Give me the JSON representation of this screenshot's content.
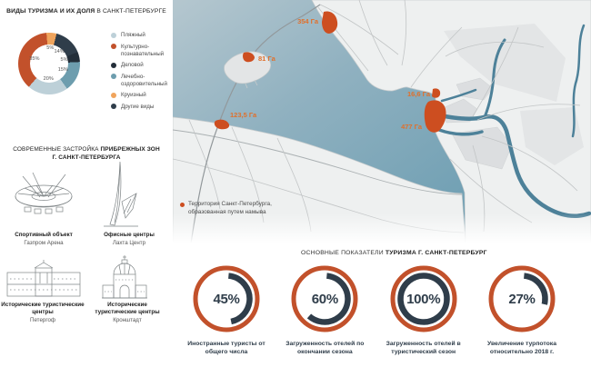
{
  "colors": {
    "accent_orange": "#c2512b",
    "cruise_orange": "#f0a45c",
    "navy": "#2f3d4a",
    "business_dark": "#232e39",
    "teal": "#6d9dae",
    "beach_blue": "#bdd0d8",
    "map_water_light": "#b5c7cf",
    "map_water": "#7fa6b7",
    "river": "#4d8199",
    "land": "#eef0f0",
    "reclaimed_area": "#cd4e20",
    "map_label": "#e0702c",
    "gauge_ring": "#c2512b",
    "gauge_arc": "#2f3d4a"
  },
  "chart_data": [
    {
      "type": "pie",
      "subtype": "donut",
      "title_bold": "ВИДЫ ТУРИЗМА И ИХ ДОЛЯ",
      "title_rest": "В САНКТ-ПЕТЕРБУРГЕ",
      "categories": [
        "Пляжный",
        "Культурно-познавательный",
        "Деловой",
        "Лечебно-оздоровительный",
        "Круизный",
        "Другие виды"
      ],
      "values": [
        20,
        35,
        5,
        15,
        5,
        14
      ],
      "unit": "%",
      "legend_position": "right",
      "legend": [
        {
          "label": "Пляжный",
          "color": "#bdd0d8"
        },
        {
          "label": "Культурно-познавательный",
          "color": "#c2512b"
        },
        {
          "label": "Деловой",
          "color": "#232e39"
        },
        {
          "label": "Лечебно-оздоровительный",
          "color": "#6d9dae"
        },
        {
          "label": "Круизный",
          "color": "#f0a45c"
        },
        {
          "label": "Другие виды",
          "color": "#2f3d4a"
        }
      ],
      "segments_clockwise": [
        {
          "label": "Круизный",
          "value": 5,
          "color": "#f0a45c"
        },
        {
          "label": "Другие виды",
          "value": 14,
          "color": "#2f3d4a"
        },
        {
          "label": "Деловой",
          "value": 5,
          "color": "#232e39"
        },
        {
          "label": "Лечебно-оздоровительный",
          "value": 15,
          "color": "#6d9dae"
        },
        {
          "label": "Пляжный",
          "value": 20,
          "color": "#bdd0d8"
        },
        {
          "label": "Культурно-познавательный",
          "value": 35,
          "color": "#c2512b"
        }
      ]
    },
    {
      "type": "gauge",
      "heading_regular": "ОСНОВНЫЕ ПОКАЗАТЕЛИ",
      "heading_bold": "ТУРИЗМА Г. САНКТ-ПЕТЕРБУРГ",
      "items": [
        {
          "label": "Иностранные туристы от общего числа",
          "value_percent": 45,
          "display": "45%"
        },
        {
          "label": "Загруженность отелей по окончании сезона",
          "value_percent": 60,
          "display": "60%"
        },
        {
          "label": "Загруженность отелей в туристический сезон",
          "value_percent": 100,
          "display": "100%"
        },
        {
          "label": "Увеличение турпотока относительно 2018 г.",
          "value_percent": 27,
          "display": "27%"
        }
      ]
    }
  ],
  "development": {
    "title_regular": "СОВРЕМЕННЫЕ ЗАСТРОЙКА",
    "title_bold": "ПРИБРЕЖНЫХ ЗОН",
    "title_line2": "Г. САНКТ-ПЕТЕРБУРГА",
    "buildings": [
      {
        "name": "Спортивный объект",
        "sub": "Газпром Арена"
      },
      {
        "name": "Офисные центры",
        "sub": "Лахта Центр"
      },
      {
        "name": "Исторические туристические центры",
        "sub": "Петергоф"
      },
      {
        "name": "Исторические туристические центры",
        "sub": "Кронштадт"
      }
    ]
  },
  "map": {
    "areas": [
      {
        "label": "354 Га",
        "hectares": "354"
      },
      {
        "label": "81 Га",
        "hectares": "81"
      },
      {
        "label": "16,6 Га",
        "hectares": "16,6"
      },
      {
        "label": "477 Га",
        "hectares": "477"
      },
      {
        "label": "123,5 Га",
        "hectares": "123,5"
      }
    ],
    "legend": {
      "line1": "Территория Санкт-Петербурга,",
      "line2": "образованная путем намыва"
    }
  }
}
